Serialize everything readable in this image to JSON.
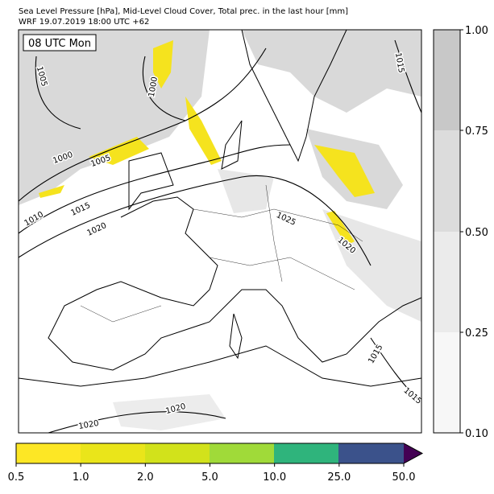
{
  "header": {
    "lines": [
      "Sea Level Pressure [hPa], Mid-Level Cloud Cover, Total prec. in the last hour [mm]",
      "WRF 19.07.2019 18:00 UTC +62"
    ]
  },
  "map": {
    "time_label": "08 UTC Mon",
    "isobar_labels": [
      "1005",
      "1000",
      "1015",
      "1000",
      "1005",
      "1010",
      "1015",
      "1020",
      "1025",
      "1020",
      "1015",
      "1015",
      "1020",
      "1020"
    ]
  },
  "cloud_colorbar": {
    "ticks": [
      "1.00",
      "0.75",
      "0.50",
      "0.25",
      "0.10"
    ]
  },
  "precip_colorbar": {
    "ticks": [
      "0.5",
      "1.0",
      "2.0",
      "5.0",
      "10.0",
      "25.0",
      "50.0"
    ]
  }
}
